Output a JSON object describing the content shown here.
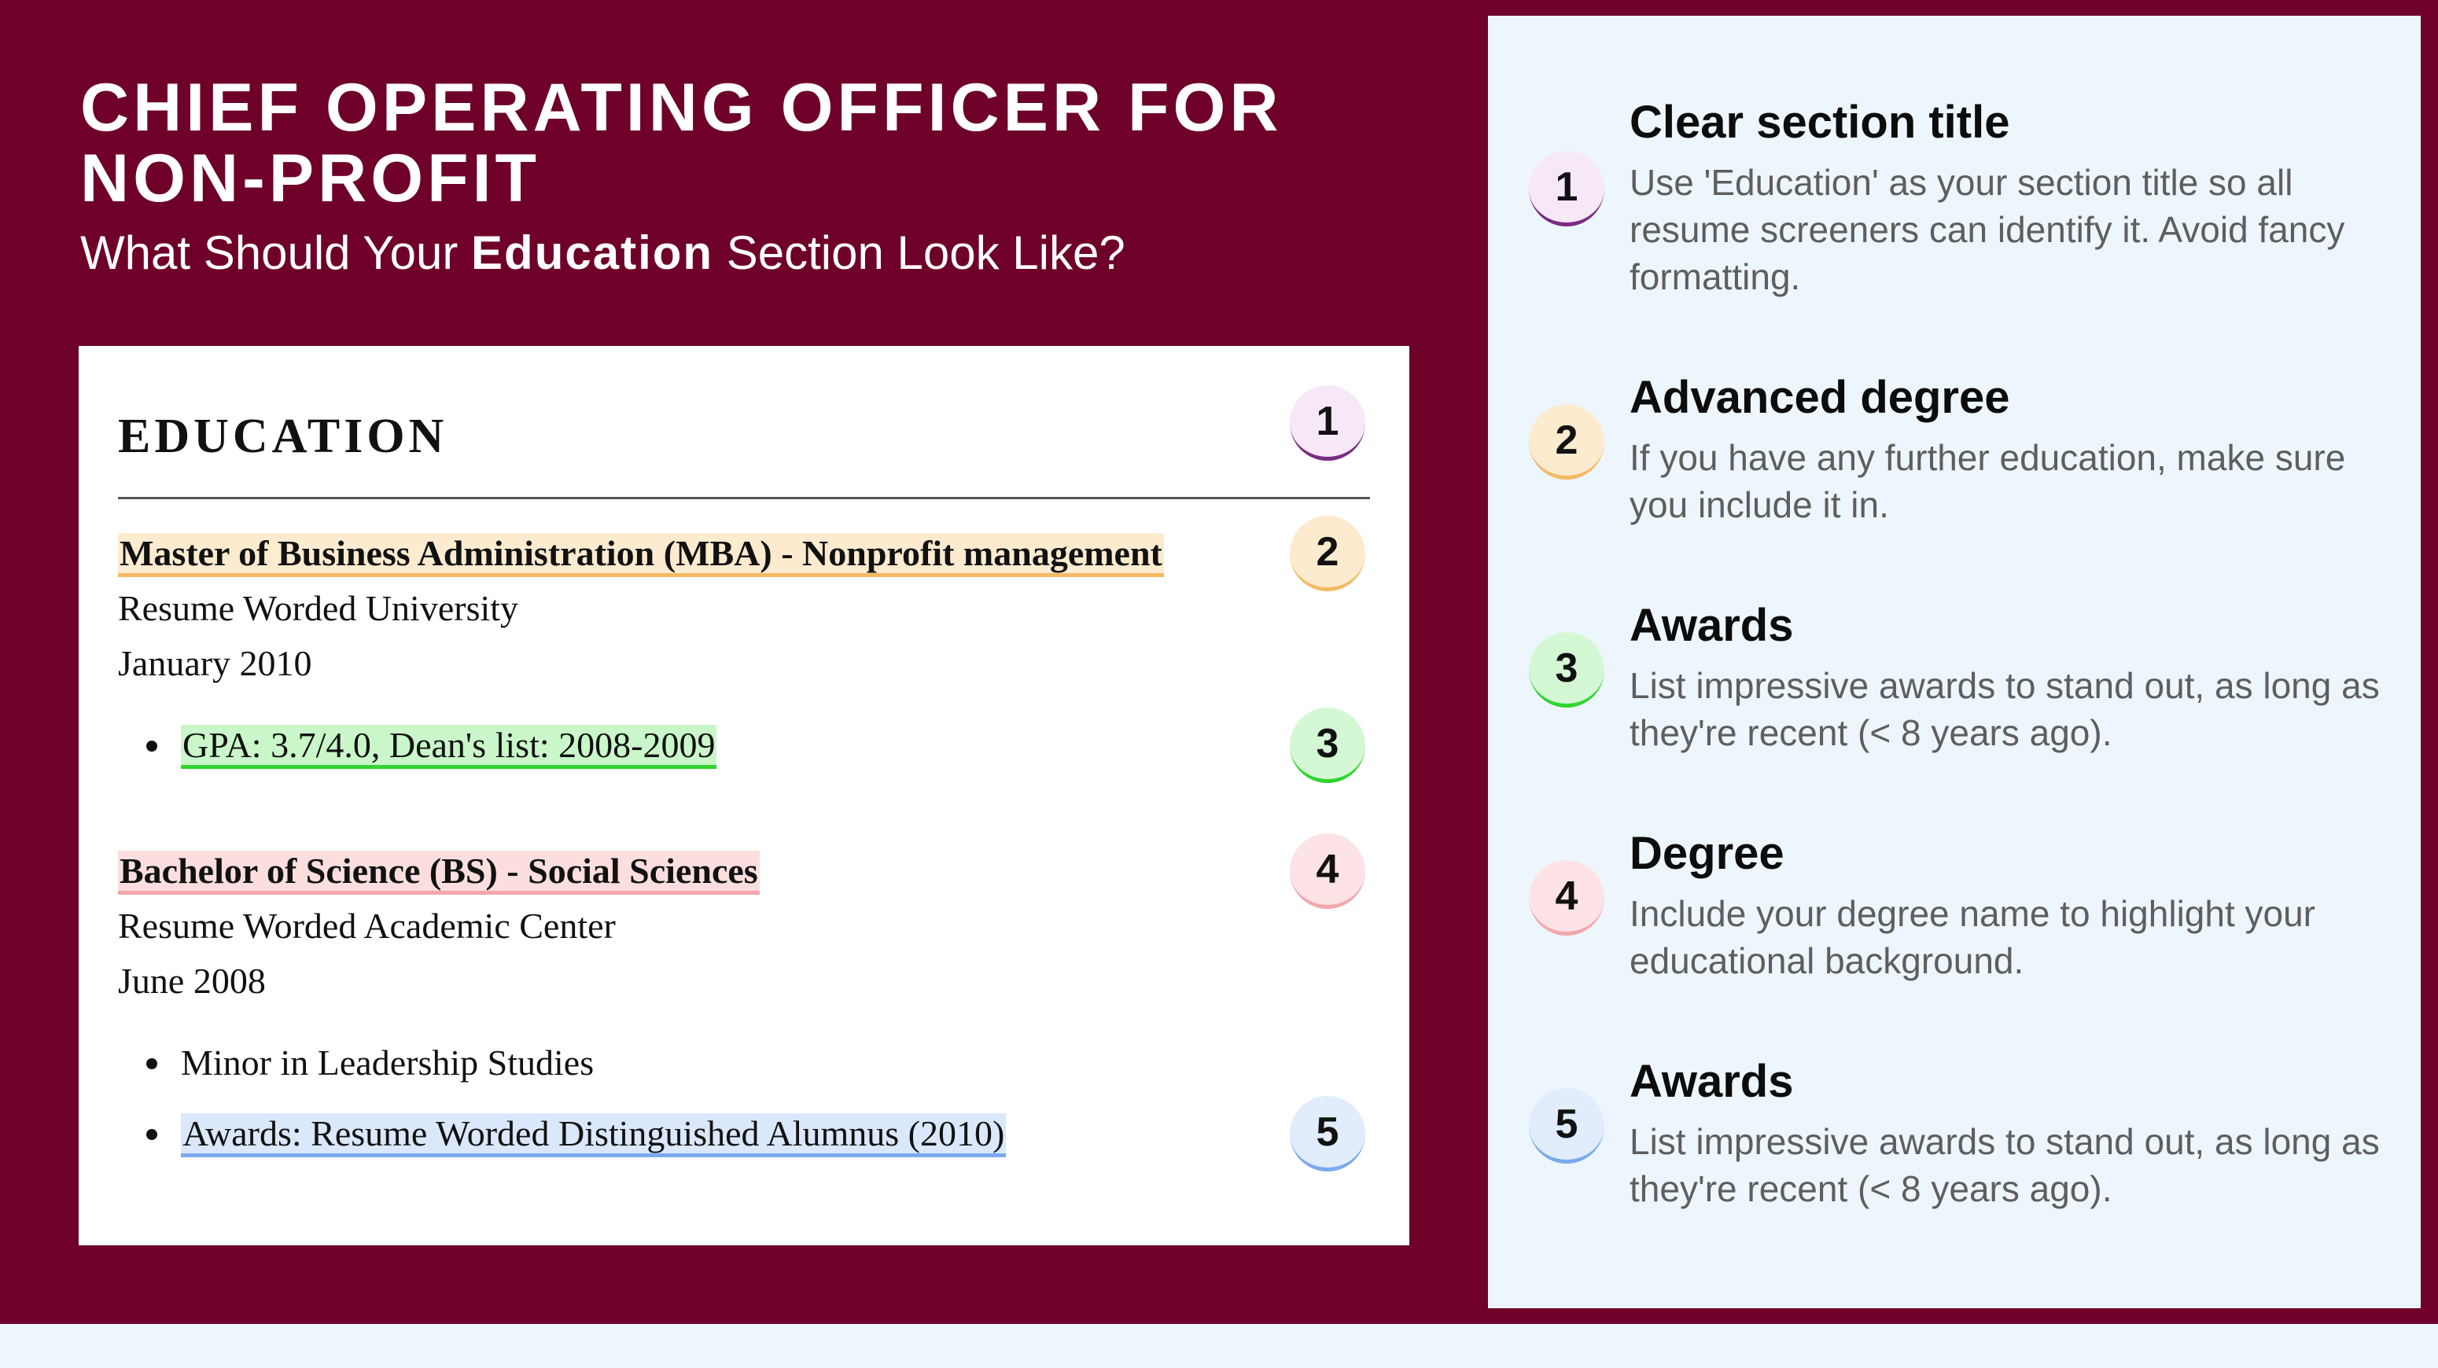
{
  "header": {
    "title_line1": "CHIEF OPERATING OFFICER FOR",
    "title_line2": "NON-PROFIT",
    "subtitle_pre": "What Should Your ",
    "subtitle_bold": "Education",
    "subtitle_post": " Section Look Like?"
  },
  "resume": {
    "heading": "EDUCATION",
    "entries": [
      {
        "degree": "Master of Business Administration (MBA) - Nonprofit management",
        "school": "Resume Worded University",
        "date": "January 2010",
        "bullets": [
          "GPA: 3.7/4.0, Dean's list: 2008-2009"
        ]
      },
      {
        "degree": "Bachelor of Science (BS) - Social Sciences",
        "school": "Resume Worded Academic Center",
        "date": "June 2008",
        "bullets": [
          "Minor in Leadership Studies",
          "Awards: Resume Worded Distinguished Alumnus (2010)"
        ]
      }
    ]
  },
  "badges": [
    "1",
    "2",
    "3",
    "4",
    "5"
  ],
  "tips": [
    {
      "number": "1",
      "title": "Clear section title",
      "desc": "Use 'Education' as your section title so all resume screeners can identify it. Avoid fancy formatting."
    },
    {
      "number": "2",
      "title": "Advanced degree",
      "desc": "If you have any further education, make sure you include it in."
    },
    {
      "number": "3",
      "title": "Awards",
      "desc": "List impressive awards to stand out, as long as they're recent (< 8 years ago)."
    },
    {
      "number": "4",
      "title": "Degree",
      "desc": "Include your degree name to highlight your educational background."
    },
    {
      "number": "5",
      "title": "Awards",
      "desc": "List impressive awards to stand out, as long as they're recent (< 8 years ago)."
    }
  ],
  "colors": {
    "background_maroon": "#6e0029",
    "panel_light_blue": "#eef6fd",
    "badge1_accent": "#7b2a82",
    "badge2_accent": "#f5b962",
    "badge3_accent": "#31d431",
    "badge4_accent": "#f4a6ad",
    "badge5_accent": "#7aa9ee"
  }
}
